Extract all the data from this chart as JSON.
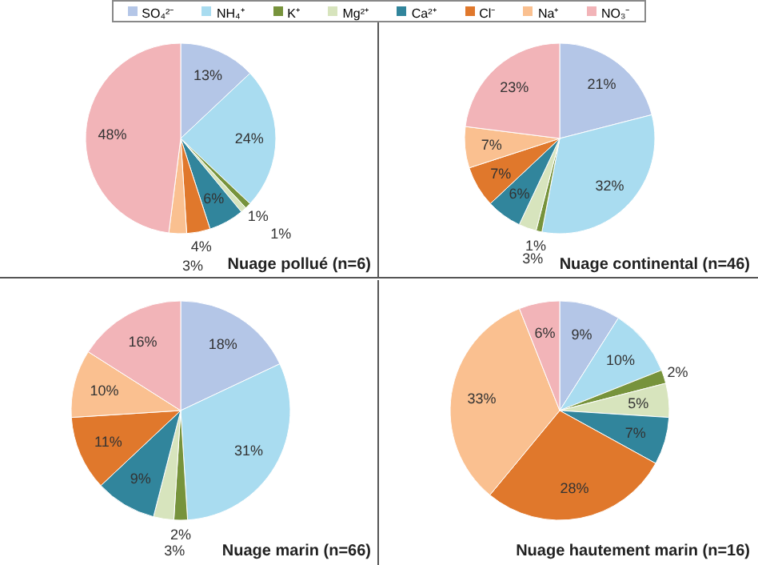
{
  "chart_data": [
    {
      "type": "pie",
      "title": "Nuage pollué (n=6)",
      "legend": "top",
      "categories": [
        "SO₄²⁻",
        "NH₄⁺",
        "K⁺",
        "Mg²⁺",
        "Ca²⁺",
        "Cl⁻",
        "Na⁺",
        "NO₃⁻"
      ],
      "values": [
        13,
        24,
        1,
        1,
        6,
        4,
        3,
        48
      ],
      "value_labels": [
        "13%",
        "24%",
        "1%",
        "1%",
        "6%",
        "4%",
        "3%",
        "48%"
      ],
      "colors": [
        "#b4c6e7",
        "#a9dcf0",
        "#77933c",
        "#d7e4bd",
        "#31859c",
        "#e0782c",
        "#fac090",
        "#f2b4b8"
      ]
    },
    {
      "type": "pie",
      "title": "Nuage continental (n=46)",
      "values": [
        21,
        32,
        1,
        3,
        6,
        7,
        7,
        23
      ],
      "value_labels": [
        "21%",
        "32%",
        "1%",
        "3%",
        "6%",
        "7%",
        "7%",
        "23%"
      ],
      "colors": [
        "#b4c6e7",
        "#a9dcf0",
        "#77933c",
        "#d7e4bd",
        "#31859c",
        "#e0782c",
        "#fac090",
        "#f2b4b8"
      ]
    },
    {
      "type": "pie",
      "title": "Nuage marin (n=66)",
      "values": [
        18,
        31,
        2,
        3,
        9,
        11,
        10,
        16
      ],
      "value_labels": [
        "18%",
        "31%",
        "2%",
        "3%",
        "9%",
        "11%",
        "10%",
        "16%"
      ],
      "colors": [
        "#b4c6e7",
        "#a9dcf0",
        "#77933c",
        "#d7e4bd",
        "#31859c",
        "#e0782c",
        "#fac090",
        "#f2b4b8"
      ]
    },
    {
      "type": "pie",
      "title": "Nuage hautement marin (n=16)",
      "values": [
        9,
        10,
        2,
        5,
        7,
        28,
        33,
        6
      ],
      "value_labels": [
        "9%",
        "10%",
        "2%",
        "5%",
        "7%",
        "28%",
        "33%",
        "6%"
      ],
      "colors": [
        "#b4c6e7",
        "#a9dcf0",
        "#77933c",
        "#d7e4bd",
        "#31859c",
        "#e0782c",
        "#fac090",
        "#f2b4b8"
      ]
    }
  ]
}
